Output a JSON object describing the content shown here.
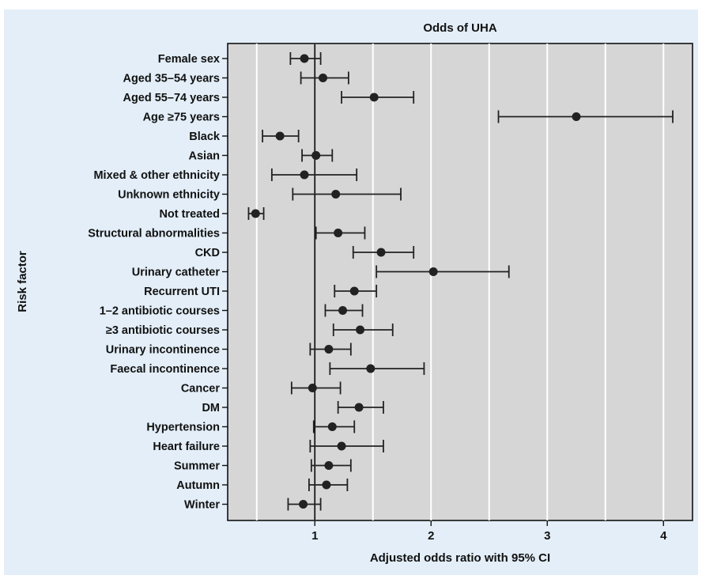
{
  "chart_data": {
    "type": "forest",
    "title": "Odds of UHA",
    "xlabel": "Adjusted odds ratio with 95% CI",
    "ylabel": "Risk factor",
    "xlim": [
      0.25,
      4.25
    ],
    "xticks": [
      1,
      2,
      3,
      4
    ],
    "grid": true,
    "reference_line": 1,
    "colors": {
      "background": "#e3eef8",
      "plot_area": "#d6d6d6",
      "grid": "#ffffff",
      "marker": "#222222"
    },
    "rows": [
      {
        "label": "Female sex",
        "or": 0.91,
        "lo": 0.79,
        "hi": 1.05
      },
      {
        "label": "Aged 35–54 years",
        "or": 1.07,
        "lo": 0.88,
        "hi": 1.29
      },
      {
        "label": "Aged 55–74 years",
        "or": 1.51,
        "lo": 1.23,
        "hi": 1.85
      },
      {
        "label": "Age ≥75 years",
        "or": 3.25,
        "lo": 2.58,
        "hi": 4.08
      },
      {
        "label": "Black",
        "or": 0.7,
        "lo": 0.55,
        "hi": 0.86
      },
      {
        "label": "Asian",
        "or": 1.01,
        "lo": 0.89,
        "hi": 1.15
      },
      {
        "label": "Mixed & other ethnicity",
        "or": 0.91,
        "lo": 0.63,
        "hi": 1.36
      },
      {
        "label": "Unknown ethnicity",
        "or": 1.18,
        "lo": 0.81,
        "hi": 1.74
      },
      {
        "label": "Not treated",
        "or": 0.49,
        "lo": 0.43,
        "hi": 0.56
      },
      {
        "label": "Structural abnormalities",
        "or": 1.2,
        "lo": 1.01,
        "hi": 1.43
      },
      {
        "label": "CKD",
        "or": 1.57,
        "lo": 1.33,
        "hi": 1.85
      },
      {
        "label": "Urinary catheter",
        "or": 2.02,
        "lo": 1.53,
        "hi": 2.67
      },
      {
        "label": "Recurrent UTI",
        "or": 1.34,
        "lo": 1.17,
        "hi": 1.53
      },
      {
        "label": "1–2 antibiotic courses",
        "or": 1.24,
        "lo": 1.09,
        "hi": 1.41
      },
      {
        "label": "≥3 antibiotic courses",
        "or": 1.39,
        "lo": 1.16,
        "hi": 1.67
      },
      {
        "label": "Urinary incontinence",
        "or": 1.12,
        "lo": 0.96,
        "hi": 1.31
      },
      {
        "label": "Faecal incontinence",
        "or": 1.48,
        "lo": 1.13,
        "hi": 1.94
      },
      {
        "label": "Cancer",
        "or": 0.98,
        "lo": 0.8,
        "hi": 1.22
      },
      {
        "label": "DM",
        "or": 1.38,
        "lo": 1.2,
        "hi": 1.59
      },
      {
        "label": "Hypertension",
        "or": 1.15,
        "lo": 0.99,
        "hi": 1.34
      },
      {
        "label": "Heart failure",
        "or": 1.23,
        "lo": 0.96,
        "hi": 1.59
      },
      {
        "label": "Summer",
        "or": 1.12,
        "lo": 0.97,
        "hi": 1.31
      },
      {
        "label": "Autumn",
        "or": 1.1,
        "lo": 0.95,
        "hi": 1.28
      },
      {
        "label": "Winter",
        "or": 0.9,
        "lo": 0.77,
        "hi": 1.05
      }
    ]
  }
}
